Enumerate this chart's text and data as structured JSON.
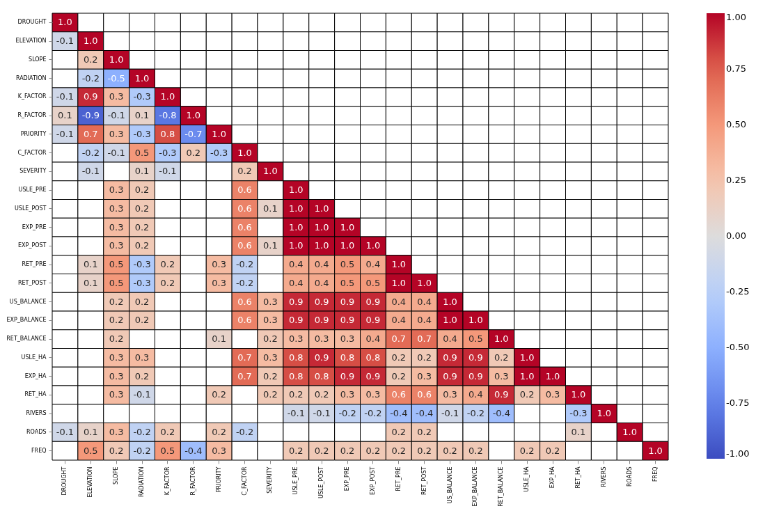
{
  "chart_data": {
    "type": "heatmap",
    "categories": [
      "DROUGHT",
      "ELEVATION",
      "SLOPE",
      "RADIATION",
      "K_FACTOR",
      "R_FACTOR",
      "PRIORITY",
      "C_FACTOR",
      "SEVERITY",
      "USLE_PRE",
      "USLE_POST",
      "EXP_PRE",
      "EXP_POST",
      "RET_PRE",
      "RET_POST",
      "US_BALANCE",
      "EXP_BALANCE",
      "RET_BALANCE",
      "USLE_HA",
      "EXP_HA",
      "RET_HA",
      "RIVERS",
      "ROADS",
      "FREQ"
    ],
    "y_categories": [
      "DROUGHT",
      "ELEVATION",
      "SLOPE",
      "RADIATION",
      "K_FACTOR",
      "R_FACTOR",
      "PRIORITY",
      "C_FACTOR",
      "SEVERITY",
      "USLE_PRE",
      "USLE_POST",
      "EXP_PRE",
      "EXP_POST",
      "RET_PRE",
      "RET_POST",
      "US_BALANCE",
      "EXP_BALANCE",
      "RET_BALANCE",
      "USLE_HA",
      "EXP_HA",
      "RET_HA",
      "RIVERS",
      "ROADS",
      "FREQ"
    ],
    "cells": [
      [
        1,
        null,
        null,
        null,
        null,
        null,
        null,
        null,
        null,
        null,
        null,
        null,
        null,
        null,
        null,
        null,
        null,
        null,
        null,
        null,
        null,
        null,
        null,
        null
      ],
      [
        -0.1,
        1,
        null,
        null,
        null,
        null,
        null,
        null,
        null,
        null,
        null,
        null,
        null,
        null,
        null,
        null,
        null,
        null,
        null,
        null,
        null,
        null,
        null,
        null
      ],
      [
        null,
        0.2,
        1,
        null,
        null,
        null,
        null,
        null,
        null,
        null,
        null,
        null,
        null,
        null,
        null,
        null,
        null,
        null,
        null,
        null,
        null,
        null,
        null,
        null
      ],
      [
        null,
        -0.2,
        -0.5,
        1,
        null,
        null,
        null,
        null,
        null,
        null,
        null,
        null,
        null,
        null,
        null,
        null,
        null,
        null,
        null,
        null,
        null,
        null,
        null,
        null
      ],
      [
        -0.1,
        0.9,
        0.3,
        -0.3,
        1,
        null,
        null,
        null,
        null,
        null,
        null,
        null,
        null,
        null,
        null,
        null,
        null,
        null,
        null,
        null,
        null,
        null,
        null,
        null
      ],
      [
        0.1,
        -0.9,
        -0.1,
        0.1,
        -0.8,
        1,
        null,
        null,
        null,
        null,
        null,
        null,
        null,
        null,
        null,
        null,
        null,
        null,
        null,
        null,
        null,
        null,
        null,
        null
      ],
      [
        -0.1,
        0.7,
        0.3,
        -0.3,
        0.8,
        -0.7,
        1,
        null,
        null,
        null,
        null,
        null,
        null,
        null,
        null,
        null,
        null,
        null,
        null,
        null,
        null,
        null,
        null,
        null
      ],
      [
        null,
        -0.2,
        -0.1,
        0.5,
        -0.3,
        0.2,
        -0.3,
        1,
        null,
        null,
        null,
        null,
        null,
        null,
        null,
        null,
        null,
        null,
        null,
        null,
        null,
        null,
        null,
        null
      ],
      [
        null,
        -0.1,
        null,
        0.1,
        -0.1,
        null,
        null,
        0.2,
        1,
        null,
        null,
        null,
        null,
        null,
        null,
        null,
        null,
        null,
        null,
        null,
        null,
        null,
        null,
        null
      ],
      [
        null,
        null,
        0.3,
        0.2,
        null,
        null,
        null,
        0.6,
        null,
        1,
        null,
        null,
        null,
        null,
        null,
        null,
        null,
        null,
        null,
        null,
        null,
        null,
        null,
        null
      ],
      [
        null,
        null,
        0.3,
        0.2,
        null,
        null,
        null,
        0.6,
        0.1,
        1,
        1,
        null,
        null,
        null,
        null,
        null,
        null,
        null,
        null,
        null,
        null,
        null,
        null,
        null
      ],
      [
        null,
        null,
        0.3,
        0.2,
        null,
        null,
        null,
        0.6,
        null,
        1,
        1,
        1,
        null,
        null,
        null,
        null,
        null,
        null,
        null,
        null,
        null,
        null,
        null,
        null
      ],
      [
        null,
        null,
        0.3,
        0.2,
        null,
        null,
        null,
        0.6,
        0.1,
        1,
        1,
        1,
        1,
        null,
        null,
        null,
        null,
        null,
        null,
        null,
        null,
        null,
        null,
        null
      ],
      [
        null,
        0.1,
        0.5,
        -0.3,
        0.2,
        null,
        0.3,
        -0.2,
        null,
        0.4,
        0.4,
        0.5,
        0.4,
        1,
        null,
        null,
        null,
        null,
        null,
        null,
        null,
        null,
        null,
        null
      ],
      [
        null,
        0.1,
        0.5,
        -0.3,
        0.2,
        null,
        0.3,
        -0.2,
        null,
        0.4,
        0.4,
        0.5,
        0.5,
        1,
        1,
        null,
        null,
        null,
        null,
        null,
        null,
        null,
        null,
        null
      ],
      [
        null,
        null,
        0.2,
        0.2,
        null,
        null,
        null,
        0.6,
        0.3,
        0.9,
        0.9,
        0.9,
        0.9,
        0.4,
        0.4,
        1,
        null,
        null,
        null,
        null,
        null,
        null,
        null,
        null
      ],
      [
        null,
        null,
        0.2,
        0.2,
        null,
        null,
        null,
        0.6,
        0.3,
        0.9,
        0.9,
        0.9,
        0.9,
        0.4,
        0.4,
        1,
        1,
        null,
        null,
        null,
        null,
        null,
        null,
        null
      ],
      [
        null,
        null,
        0.2,
        null,
        null,
        null,
        0.1,
        null,
        0.2,
        0.3,
        0.3,
        0.3,
        0.4,
        0.7,
        0.7,
        0.4,
        0.5,
        1,
        null,
        null,
        null,
        null,
        null,
        null
      ],
      [
        null,
        null,
        0.3,
        0.3,
        null,
        null,
        null,
        0.7,
        0.3,
        0.8,
        0.9,
        0.8,
        0.8,
        0.2,
        0.2,
        0.9,
        0.9,
        0.2,
        1,
        null,
        null,
        null,
        null,
        null
      ],
      [
        null,
        null,
        0.3,
        0.2,
        null,
        null,
        null,
        0.7,
        0.2,
        0.8,
        0.8,
        0.9,
        0.9,
        0.2,
        0.3,
        0.9,
        0.9,
        0.3,
        1,
        1,
        null,
        null,
        null,
        null
      ],
      [
        null,
        null,
        0.3,
        -0.1,
        null,
        null,
        0.2,
        null,
        0.2,
        0.2,
        0.2,
        0.3,
        0.3,
        0.6,
        0.6,
        0.3,
        0.4,
        0.9,
        0.2,
        0.3,
        1,
        null,
        null,
        null
      ],
      [
        null,
        null,
        null,
        null,
        null,
        null,
        null,
        null,
        null,
        -0.1,
        -0.1,
        -0.2,
        -0.2,
        -0.4,
        -0.4,
        -0.1,
        -0.2,
        -0.4,
        null,
        null,
        -0.3,
        1,
        null,
        null
      ],
      [
        -0.1,
        0.1,
        0.3,
        -0.2,
        0.2,
        null,
        0.2,
        -0.2,
        null,
        null,
        null,
        null,
        null,
        0.2,
        0.2,
        null,
        null,
        null,
        null,
        null,
        0.1,
        null,
        1,
        null
      ],
      [
        null,
        0.5,
        0.2,
        -0.2,
        0.5,
        -0.4,
        0.3,
        null,
        null,
        0.2,
        0.2,
        0.2,
        0.2,
        0.2,
        0.2,
        0.2,
        0.2,
        null,
        0.2,
        0.2,
        null,
        null,
        null,
        1
      ]
    ],
    "cell_labels": [
      [
        "1.0",
        null,
        null,
        null,
        null,
        null,
        null,
        null,
        null,
        null,
        null,
        null,
        null,
        null,
        null,
        null,
        null,
        null,
        null,
        null,
        null,
        null,
        null,
        null
      ],
      [
        "-0.1",
        "1.0",
        null,
        null,
        null,
        null,
        null,
        null,
        null,
        null,
        null,
        null,
        null,
        null,
        null,
        null,
        null,
        null,
        null,
        null,
        null,
        null,
        null,
        null
      ],
      [
        null,
        "0.2",
        "1.0",
        null,
        null,
        null,
        null,
        null,
        null,
        null,
        null,
        null,
        null,
        null,
        null,
        null,
        null,
        null,
        null,
        null,
        null,
        null,
        null,
        null
      ],
      [
        null,
        "-0.2",
        "-0.5",
        "1.0",
        null,
        null,
        null,
        null,
        null,
        null,
        null,
        null,
        null,
        null,
        null,
        null,
        null,
        null,
        null,
        null,
        null,
        null,
        null,
        null
      ],
      [
        "-0.1",
        "0.9",
        "0.3",
        "-0.3",
        "1.0",
        null,
        null,
        null,
        null,
        null,
        null,
        null,
        null,
        null,
        null,
        null,
        null,
        null,
        null,
        null,
        null,
        null,
        null,
        null
      ],
      [
        "0.1",
        "-0.9",
        "-0.1",
        "0.1",
        "-0.8",
        "1.0",
        null,
        null,
        null,
        null,
        null,
        null,
        null,
        null,
        null,
        null,
        null,
        null,
        null,
        null,
        null,
        null,
        null,
        null
      ],
      [
        "-0.1",
        "0.7",
        "0.3",
        "-0.3",
        "0.8",
        "-0.7",
        "1.0",
        null,
        null,
        null,
        null,
        null,
        null,
        null,
        null,
        null,
        null,
        null,
        null,
        null,
        null,
        null,
        null,
        null
      ],
      [
        null,
        "-0.2",
        "-0.1",
        "0.5",
        "-0.3",
        "0.2",
        "-0.3",
        "1.0",
        null,
        null,
        null,
        null,
        null,
        null,
        null,
        null,
        null,
        null,
        null,
        null,
        null,
        null,
        null,
        null
      ],
      [
        null,
        "-0.1",
        null,
        "0.1",
        "-0.1",
        null,
        null,
        "0.2",
        "1.0",
        null,
        null,
        null,
        null,
        null,
        null,
        null,
        null,
        null,
        null,
        null,
        null,
        null,
        null,
        null
      ],
      [
        null,
        null,
        "0.3",
        "0.2",
        null,
        null,
        null,
        "0.6",
        null,
        "1.0",
        null,
        null,
        null,
        null,
        null,
        null,
        null,
        null,
        null,
        null,
        null,
        null,
        null,
        null
      ],
      [
        null,
        null,
        "0.3",
        "0.2",
        null,
        null,
        null,
        "0.6",
        "0.1",
        "1.0",
        "1.0",
        null,
        null,
        null,
        null,
        null,
        null,
        null,
        null,
        null,
        null,
        null,
        null,
        null
      ],
      [
        null,
        null,
        "0.3",
        "0.2",
        null,
        null,
        null,
        "0.6",
        null,
        "1.0",
        "1.0",
        "1.0",
        null,
        null,
        null,
        null,
        null,
        null,
        null,
        null,
        null,
        null,
        null,
        null
      ],
      [
        null,
        null,
        "0.3",
        "0.2",
        null,
        null,
        null,
        "0.6",
        "0.1",
        "1.0",
        "1.0",
        "1.0",
        "1.0",
        null,
        null,
        null,
        null,
        null,
        null,
        null,
        null,
        null,
        null,
        null
      ],
      [
        null,
        "0.1",
        "0.5",
        "-0.3",
        "0.2",
        null,
        "0.3",
        "-0.2",
        null,
        "0.4",
        "0.4",
        "0.5",
        "0.4",
        "1.0",
        null,
        null,
        null,
        null,
        null,
        null,
        null,
        null,
        null,
        null
      ],
      [
        null,
        "0.1",
        "0.5",
        "-0.3",
        "0.2",
        null,
        "0.3",
        "-0.2",
        null,
        "0.4",
        "0.4",
        "0.5",
        "0.5",
        "1.0",
        "1.0",
        null,
        null,
        null,
        null,
        null,
        null,
        null,
        null,
        null
      ],
      [
        null,
        null,
        "0.2",
        "0.2",
        null,
        null,
        null,
        "0.6",
        "0.3",
        "0.9",
        "0.9",
        "0.9",
        "0.9",
        "0.4",
        "0.4",
        "1.0",
        null,
        null,
        null,
        null,
        null,
        null,
        null,
        null
      ],
      [
        null,
        null,
        "0.2",
        "0.2",
        null,
        null,
        null,
        "0.6",
        "0.3",
        "0.9",
        "0.9",
        "0.9",
        "0.9",
        "0.4",
        "0.4",
        "1.0",
        "1.0",
        null,
        null,
        null,
        null,
        null,
        null,
        null
      ],
      [
        null,
        null,
        "0.2",
        null,
        null,
        null,
        "0.1",
        null,
        "0.2",
        "0.3",
        "0.3",
        "0.3",
        "0.4",
        "0.7",
        "0.7",
        "0.4",
        "0.5",
        "1.0",
        null,
        null,
        null,
        null,
        null,
        null
      ],
      [
        null,
        null,
        "0.3",
        "0.3",
        null,
        null,
        null,
        "0.7",
        "0.3",
        "0.8",
        "0.9",
        "0.8",
        "0.8",
        "0.2",
        "0.2",
        "0.9",
        "0.9",
        "0.2",
        "1.0",
        null,
        null,
        null,
        null,
        null
      ],
      [
        null,
        null,
        "0.3",
        "0.2",
        null,
        null,
        null,
        "0.7",
        "0.2",
        "0.8",
        "0.8",
        "0.9",
        "0.9",
        "0.2",
        "0.3",
        "0.9",
        "0.9",
        "0.3",
        "1.0",
        "1.0",
        null,
        null,
        null,
        null
      ],
      [
        null,
        null,
        "0.3",
        "-0.1",
        null,
        null,
        "0.2",
        null,
        "0.2",
        "0.2",
        "0.2",
        "0.3",
        "0.3",
        "0.6",
        "0.6",
        "0.3",
        "0.4",
        "0.9",
        "0.2",
        "0.3",
        "1.0",
        null,
        null,
        null
      ],
      [
        null,
        null,
        null,
        null,
        null,
        null,
        null,
        null,
        null,
        "-0.1",
        "-0.1",
        "-0.2",
        "-0.2",
        "-0.4",
        "-0.4",
        "-0.1",
        "-0.2",
        "-0.4",
        null,
        null,
        "-0.3",
        "1.0",
        null,
        null
      ],
      [
        "-0.1",
        "0.1",
        "0.3",
        "-0.2",
        "0.2",
        null,
        "0.2",
        "-0.2",
        null,
        null,
        null,
        null,
        null,
        "0.2",
        "0.2",
        null,
        null,
        null,
        null,
        null,
        "0.1",
        null,
        "1.0",
        null
      ],
      [
        null,
        "0.5",
        "0.2",
        "-0.2",
        "0.5",
        "-0.4",
        "0.3",
        null,
        null,
        "0.2",
        "0.2",
        "0.2",
        "0.2",
        "0.2",
        "0.2",
        "0.2",
        "0.2",
        null,
        "0.2",
        "0.2",
        null,
        null,
        null,
        "1.0"
      ]
    ],
    "clim": [
      -1,
      1
    ],
    "cticks": [
      {
        "value": -1,
        "label": "-1.00"
      },
      {
        "value": -0.75,
        "label": "-0.75"
      },
      {
        "value": -0.5,
        "label": "-0.50"
      },
      {
        "value": -0.25,
        "label": "-0.25"
      },
      {
        "value": 0,
        "label": "0.00"
      },
      {
        "value": 0.25,
        "label": "0.25"
      },
      {
        "value": 0.5,
        "label": "0.50"
      },
      {
        "value": 0.75,
        "label": "0.75"
      },
      {
        "value": 1,
        "label": "1.00"
      }
    ]
  }
}
